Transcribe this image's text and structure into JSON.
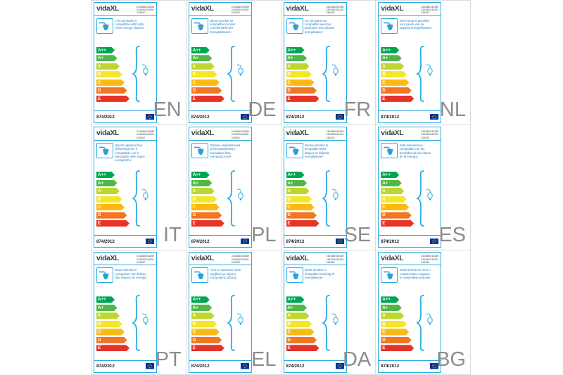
{
  "brand": "vidaXL",
  "product_codes": [
    "244388/244389",
    "244390/244391",
    "244392"
  ],
  "regulation_number": "874/2012",
  "colors": {
    "label_border_blue": "#29abe2",
    "description_text_blue": "#1e7ac2",
    "language_code_gray": "#8d8d8d",
    "brand_gray": "#3e3e3d",
    "eu_flag_blue": "#003399",
    "eu_flag_stars": "#ffcc00",
    "grid_line_gray": "#dcdcdc"
  },
  "icons": {
    "desc_icon": "wall-lamp-icon",
    "scale_pointer": "curly-brace-icon",
    "pointer_target": "pendant-lamp-icon",
    "flag": "eu-flag-icon"
  },
  "energy_scale": [
    {
      "class": "A++",
      "color": "#00a651"
    },
    {
      "class": "A+",
      "color": "#50b747"
    },
    {
      "class": "A",
      "color": "#bed630"
    },
    {
      "class": "B",
      "color": "#f5e626"
    },
    {
      "class": "C",
      "color": "#fbb914"
    },
    {
      "class": "D",
      "color": "#f07622"
    },
    {
      "class": "E",
      "color": "#e6332a"
    }
  ],
  "labels": [
    {
      "language_code": "EN",
      "description_lines": [
        "This luminaire is",
        "compatible with bulbs",
        "of the energy classes:"
      ]
    },
    {
      "language_code": "DE",
      "description_lines": [
        "Diese Leuchte ist",
        "kompatibel mit den",
        "Leuchtmitteln der",
        "Energieklassen:"
      ]
    },
    {
      "language_code": "FR",
      "description_lines": [
        "Ce luminaire est",
        "compatible avec les",
        "ampoules des classes",
        "énergétiques:"
      ]
    },
    {
      "language_code": "NL",
      "description_lines": [
        "Deze lamp is geschikt",
        "voor peren van de",
        "volgend energieklassen:"
      ]
    },
    {
      "language_code": "IT",
      "description_lines": [
        "Questo apparecchio",
        "d'illuminazione è",
        "compatibile con le",
        "lampadine delle classi",
        "energetiche:"
      ]
    },
    {
      "language_code": "PL",
      "description_lines": [
        "Oprawa oświetleniowa",
        "jest kompatybilna z",
        "żarówkami klas",
        "energetycznych:"
      ]
    },
    {
      "language_code": "SE",
      "description_lines": [
        "Denna armatur är",
        "kompatibel med",
        "lampor av följande",
        "energiklasser:"
      ]
    },
    {
      "language_code": "ES",
      "description_lines": [
        "Esta luminaria es",
        "compatible con las",
        "bombillas de las clases",
        "de la energía:"
      ]
    },
    {
      "language_code": "PT",
      "description_lines": [
        "Esta luminária é",
        "compatível com bulbos",
        "das classes de energia:"
      ]
    },
    {
      "language_code": "EL",
      "description_lines": [
        "Αυτό το φωτιστικό είναι",
        "συμβατό με λάμπες",
        "ενεργειακής κλάσης:"
      ]
    },
    {
      "language_code": "DA",
      "description_lines": [
        "Dette armatur er",
        "kompatibel med lag af",
        "energiklasser:"
      ]
    },
    {
      "language_code": "BG",
      "description_lines": [
        "Осветителното тяло е",
        "съвместимо с крушки",
        "от енергийни класове:"
      ]
    }
  ]
}
